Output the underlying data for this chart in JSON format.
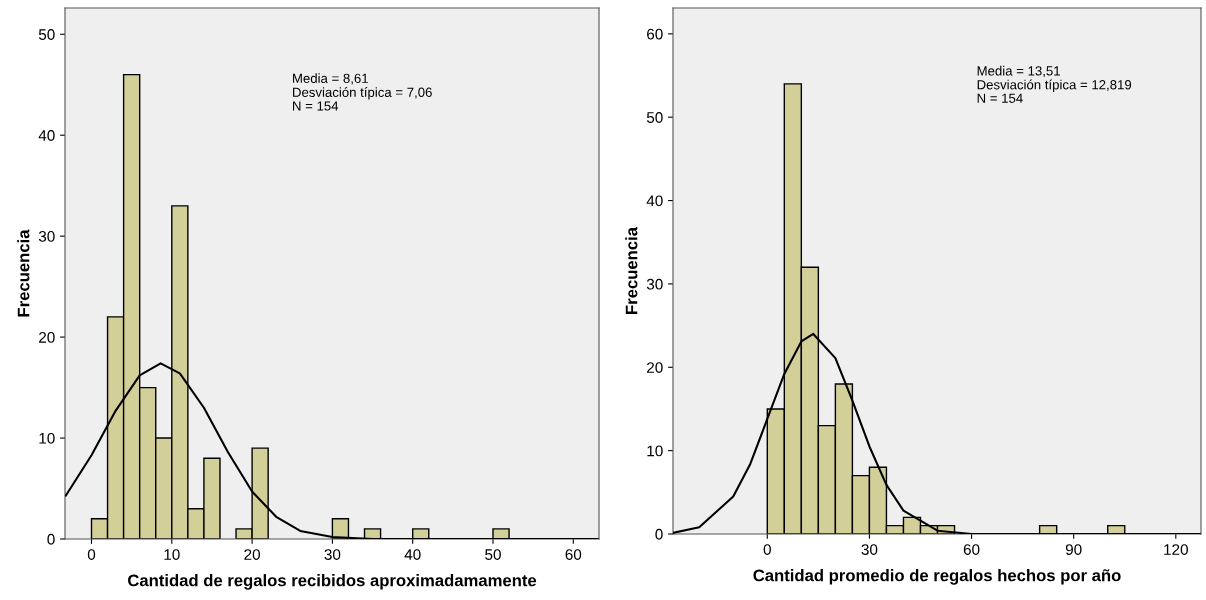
{
  "chart_data": [
    {
      "type": "histogram",
      "xlabel": "Cantidad de regalos recibidos aproximadamamente",
      "ylabel": "Frecuencia",
      "color": "#d3cf98",
      "bins": [
        0,
        2,
        4,
        6,
        8,
        10,
        12,
        14,
        16,
        18,
        20,
        22,
        24,
        26,
        28,
        30,
        32,
        34,
        36,
        38,
        40,
        42,
        44,
        46,
        48,
        50,
        52
      ],
      "values": [
        2,
        22,
        46,
        15,
        10,
        33,
        3,
        8,
        0,
        1,
        9,
        0,
        0,
        0,
        0,
        2,
        0,
        1,
        0,
        0,
        1,
        0,
        0,
        0,
        0,
        1
      ],
      "series": [
        {
          "type": "line",
          "color": "#000000",
          "x": [
            -3.2,
            0,
            3,
            6,
            8.61,
            11,
            14,
            17,
            20,
            23,
            26,
            30,
            35,
            63
          ],
          "values": [
            4.3,
            8.3,
            12.7,
            16.2,
            17.4,
            16.4,
            13.0,
            8.6,
            4.7,
            2.2,
            0.8,
            0.2,
            0,
            0
          ]
        }
      ],
      "xlim": [
        -3.3,
        63.2
      ],
      "ylim": [
        0,
        52.6
      ],
      "xticks": [
        0,
        10,
        20,
        30,
        40,
        50,
        60
      ],
      "yticks": [
        0,
        10,
        20,
        30,
        40,
        50
      ],
      "grid": false,
      "annotations": [
        "Media = 8,61",
        "Desviación típica = 7,06",
        "N = 154"
      ]
    },
    {
      "type": "histogram",
      "xlabel": "Cantidad promedio de regalos hechos por año",
      "ylabel": "Frecuencia",
      "color": "#d3cf98",
      "bins": [
        0,
        5,
        10,
        15,
        20,
        25,
        30,
        35,
        40,
        45,
        50,
        55,
        60,
        65,
        70,
        75,
        80,
        85,
        90,
        95,
        100,
        105
      ],
      "values": [
        15,
        54,
        32,
        13,
        18,
        7,
        8,
        1,
        2,
        1,
        1,
        0,
        0,
        0,
        0,
        0,
        1,
        0,
        0,
        0,
        1
      ],
      "series": [
        {
          "type": "line",
          "color": "#000000",
          "x": [
            -27.7,
            -20,
            -10,
            -5,
            0,
            5,
            10,
            13.51,
            20,
            25,
            30,
            35,
            40,
            50,
            60,
            127
          ],
          "values": [
            0.14,
            0.8,
            4.5,
            8.4,
            13.8,
            19.2,
            23.1,
            24.0,
            21.1,
            16.0,
            10.5,
            5.9,
            2.8,
            0.4,
            0,
            0
          ]
        }
      ],
      "xlim": [
        -27.7,
        127.4
      ],
      "ylim": [
        0,
        63.1
      ],
      "xticks": [
        0,
        30,
        60,
        90,
        120
      ],
      "yticks": [
        0,
        10,
        20,
        30,
        40,
        50,
        60
      ],
      "grid": false,
      "annotations": [
        "Media = 13,51",
        "Desviación típica = 12,819",
        "N = 154"
      ]
    }
  ]
}
